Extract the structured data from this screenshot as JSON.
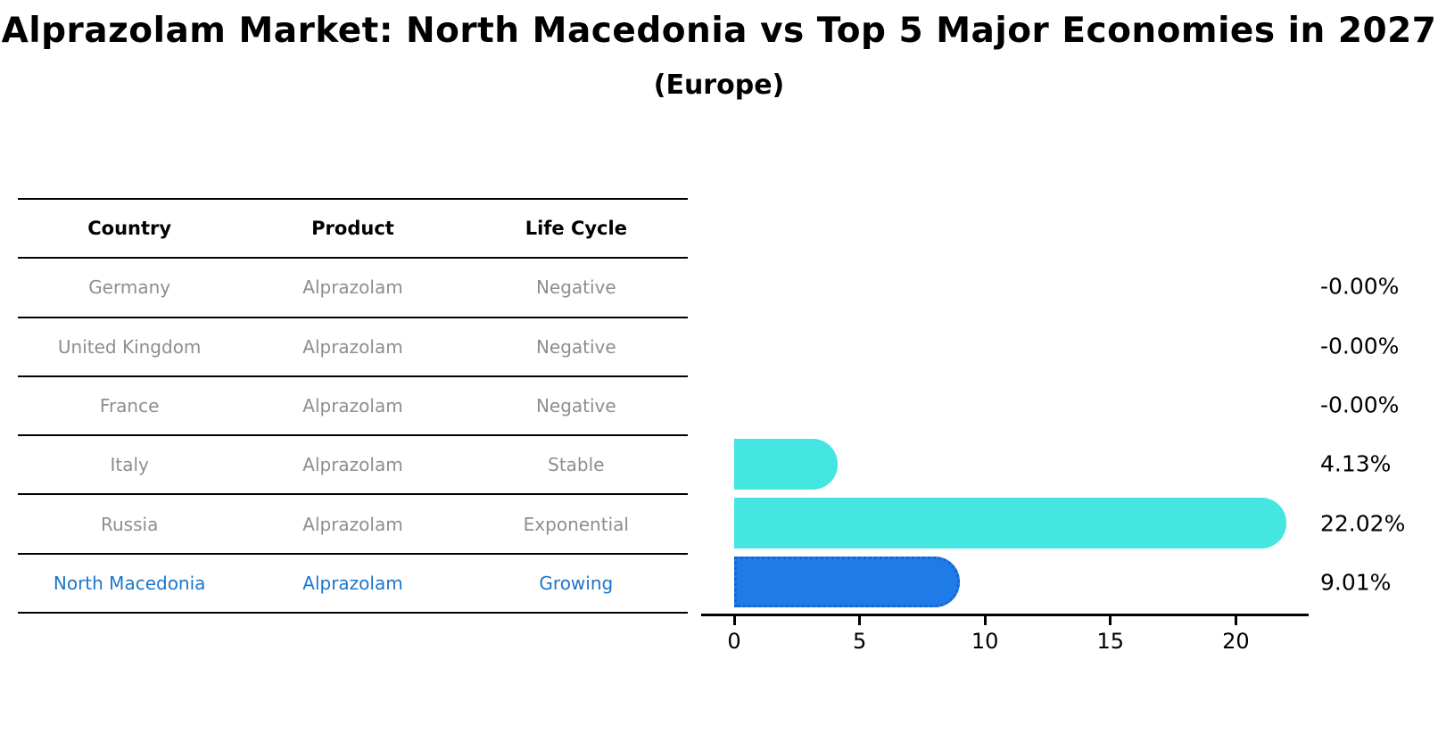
{
  "title": "Alprazolam Market: North Macedonia vs Top 5 Major Economies in 2027",
  "subtitle": "(Europe)",
  "table": {
    "headers": [
      "Country",
      "Product",
      "Life Cycle"
    ],
    "rows": [
      {
        "country": "Germany",
        "product": "Alprazolam",
        "life_cycle": "Negative",
        "highlighted": false
      },
      {
        "country": "United Kingdom",
        "product": "Alprazolam",
        "life_cycle": "Negative",
        "highlighted": false
      },
      {
        "country": "France",
        "product": "Alprazolam",
        "life_cycle": "Negative",
        "highlighted": false
      },
      {
        "country": "Italy",
        "product": "Alprazolam",
        "life_cycle": "Stable",
        "highlighted": false
      },
      {
        "country": "Russia",
        "product": "Alprazolam",
        "life_cycle": "Exponential",
        "highlighted": false
      },
      {
        "country": "North Macedonia",
        "product": "Alprazolam",
        "life_cycle": "Growing",
        "highlighted": true
      }
    ]
  },
  "chart_data": {
    "type": "bar",
    "orientation": "horizontal",
    "title": "Alprazolam Market: North Macedonia vs Top 5 Major Economies in 2027",
    "subtitle": "(Europe)",
    "categories": [
      "Germany",
      "United Kingdom",
      "France",
      "Italy",
      "Russia",
      "North Macedonia"
    ],
    "values": [
      -0.0,
      -0.0,
      -0.0,
      4.13,
      22.02,
      9.01
    ],
    "value_labels": [
      "-0.00%",
      "-0.00%",
      "-0.00%",
      "4.13%",
      "22.02%",
      "9.01%"
    ],
    "x_ticks": [
      "0",
      "5",
      "10",
      "15",
      "20"
    ],
    "x_tick_values": [
      0,
      5,
      10,
      15,
      20
    ],
    "xlim": [
      0,
      23
    ],
    "unit": "%",
    "grid": false,
    "legend": false,
    "bar_color": "#45e5e2",
    "highlight_bar_color": "#1e7be8",
    "highlight_bar_border_color": "#1663d6",
    "highlight_text_color": "#1c76c9",
    "axis_color": "#000000",
    "highlight_index": 5
  }
}
